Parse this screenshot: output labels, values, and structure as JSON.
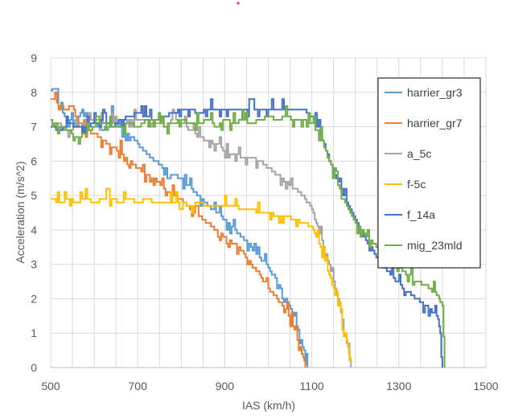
{
  "chart_data": {
    "type": "line",
    "title": "",
    "xlabel": "IAS (km/h)",
    "ylabel": "Acceleration (m/s^2)",
    "xlim": [
      500,
      1500
    ],
    "ylim": [
      0,
      9
    ],
    "xticks": [
      500,
      700,
      900,
      1100,
      1300,
      1500
    ],
    "yticks": [
      0,
      1,
      2,
      3,
      4,
      5,
      6,
      7,
      8,
      9
    ],
    "grid": true,
    "legend_position": "right",
    "series": [
      {
        "name": "harrier_gr3",
        "color": "#5B9BD5",
        "x": [
          500,
          515,
          520,
          540,
          560,
          580,
          600,
          620,
          640,
          660,
          680,
          700,
          720,
          740,
          760,
          780,
          800,
          820,
          840,
          860,
          880,
          900,
          920,
          940,
          960,
          980,
          1000,
          1020,
          1040,
          1055,
          1065,
          1075,
          1085,
          1090
        ],
        "y": [
          8.05,
          8.05,
          7.5,
          7.2,
          7.0,
          7.4,
          7.1,
          6.9,
          7.3,
          6.9,
          6.8,
          6.5,
          6.2,
          6.0,
          5.8,
          5.6,
          5.5,
          5.2,
          5.0,
          4.7,
          4.5,
          4.3,
          4.0,
          3.8,
          3.5,
          3.2,
          2.9,
          2.5,
          2.0,
          1.6,
          1.2,
          0.8,
          0.3,
          0.0
        ]
      },
      {
        "name": "harrier_gr7",
        "color": "#ED7D31",
        "x": [
          500,
          510,
          530,
          550,
          560,
          580,
          600,
          620,
          640,
          660,
          680,
          700,
          720,
          740,
          760,
          780,
          800,
          820,
          840,
          860,
          880,
          900,
          920,
          940,
          960,
          980,
          1000,
          1020,
          1040,
          1050,
          1060,
          1070,
          1080,
          1085
        ],
        "y": [
          7.8,
          7.75,
          7.5,
          7.6,
          7.2,
          6.9,
          6.8,
          6.6,
          6.4,
          6.3,
          6.0,
          5.8,
          5.6,
          5.5,
          5.2,
          5.0,
          4.9,
          4.6,
          4.4,
          4.2,
          4.0,
          3.8,
          3.6,
          3.4,
          3.0,
          2.7,
          2.3,
          2.0,
          1.7,
          1.4,
          1.1,
          0.7,
          0.3,
          0.0
        ]
      },
      {
        "name": "a_5c",
        "color": "#A5A5A5",
        "x": [
          500,
          520,
          540,
          560,
          580,
          600,
          620,
          640,
          660,
          680,
          700,
          720,
          740,
          760,
          780,
          800,
          820,
          840,
          860,
          880,
          900,
          920,
          940,
          960,
          980,
          1000,
          1020,
          1040,
          1060,
          1080,
          1100,
          1110,
          1120,
          1130,
          1140,
          1150,
          1160,
          1170,
          1180,
          1190
        ],
        "y": [
          7.0,
          7.1,
          6.9,
          7.0,
          7.1,
          7.2,
          7.1,
          7.1,
          7.0,
          7.2,
          7.2,
          7.2,
          7.1,
          7.0,
          7.2,
          7.1,
          6.9,
          6.7,
          6.6,
          6.5,
          6.3,
          6.2,
          6.1,
          6.1,
          6.0,
          5.8,
          5.6,
          5.4,
          5.2,
          5.0,
          4.6,
          4.2,
          3.8,
          3.4,
          3.0,
          2.5,
          2.0,
          1.4,
          0.7,
          0.0
        ]
      },
      {
        "name": "f-5c",
        "color": "#FFC000",
        "x": [
          500,
          520,
          540,
          560,
          580,
          600,
          620,
          640,
          660,
          680,
          700,
          720,
          740,
          760,
          780,
          800,
          820,
          840,
          860,
          880,
          900,
          920,
          940,
          960,
          980,
          1000,
          1020,
          1040,
          1060,
          1080,
          1100,
          1110,
          1120,
          1130,
          1140,
          1150,
          1160,
          1170,
          1180,
          1185,
          1190
        ],
        "y": [
          4.9,
          4.8,
          4.9,
          4.8,
          4.9,
          4.8,
          4.9,
          4.9,
          4.8,
          4.9,
          4.8,
          4.9,
          4.8,
          4.8,
          4.8,
          4.8,
          4.7,
          4.8,
          4.7,
          4.7,
          4.7,
          4.7,
          4.6,
          4.6,
          4.5,
          4.5,
          4.4,
          4.4,
          4.3,
          4.2,
          4.1,
          3.8,
          3.5,
          3.1,
          2.7,
          2.3,
          1.8,
          1.3,
          0.8,
          0.4,
          0.0
        ]
      },
      {
        "name": "f_14a",
        "color": "#4472C4",
        "x": [
          500,
          520,
          540,
          560,
          580,
          600,
          620,
          640,
          660,
          680,
          700,
          720,
          740,
          760,
          780,
          800,
          820,
          840,
          860,
          880,
          900,
          920,
          940,
          960,
          980,
          1000,
          1020,
          1040,
          1060,
          1080,
          1100,
          1120,
          1140,
          1160,
          1180,
          1200,
          1220,
          1240,
          1260,
          1280,
          1300,
          1320,
          1340,
          1360,
          1380,
          1390,
          1395,
          1400
        ],
        "y": [
          7.0,
          6.9,
          7.1,
          7.0,
          7.0,
          7.1,
          7.2,
          7.0,
          7.2,
          7.3,
          7.4,
          7.3,
          7.2,
          7.3,
          7.4,
          7.5,
          7.5,
          7.4,
          7.5,
          7.5,
          7.5,
          7.5,
          7.5,
          7.5,
          7.5,
          7.5,
          7.5,
          7.5,
          7.5,
          7.5,
          7.3,
          6.8,
          6.0,
          5.4,
          4.8,
          4.3,
          3.8,
          3.4,
          3.0,
          2.7,
          2.4,
          2.2,
          2.0,
          1.8,
          1.6,
          1.4,
          1.0,
          0.0
        ]
      },
      {
        "name": "mig_23mld",
        "color": "#70AD47",
        "x": [
          500,
          520,
          540,
          560,
          580,
          600,
          620,
          640,
          660,
          680,
          700,
          720,
          740,
          760,
          780,
          800,
          820,
          840,
          860,
          880,
          900,
          920,
          940,
          960,
          980,
          1000,
          1020,
          1040,
          1060,
          1080,
          1100,
          1120,
          1140,
          1160,
          1180,
          1200,
          1220,
          1240,
          1260,
          1280,
          1300,
          1320,
          1340,
          1360,
          1380,
          1390,
          1395,
          1400,
          1405
        ],
        "y": [
          7.2,
          7.0,
          6.9,
          6.7,
          6.8,
          7.0,
          7.1,
          7.0,
          7.0,
          7.1,
          7.0,
          7.2,
          7.2,
          7.0,
          7.1,
          7.2,
          7.1,
          7.1,
          7.2,
          7.0,
          7.2,
          7.1,
          7.2,
          7.1,
          7.2,
          7.3,
          7.2,
          7.3,
          7.2,
          7.2,
          7.1,
          6.7,
          6.0,
          5.3,
          4.7,
          4.2,
          3.9,
          3.6,
          3.4,
          3.2,
          2.9,
          2.7,
          2.5,
          2.4,
          2.2,
          2.1,
          1.9,
          1.8,
          0.0
        ]
      }
    ]
  }
}
